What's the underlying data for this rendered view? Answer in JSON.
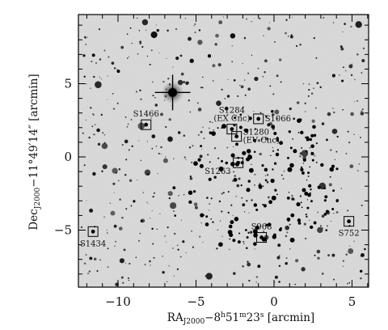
{
  "chart_data": {
    "type": "scatter",
    "xlabel": "RA_J2000 − 8h51m23s [arcmin]",
    "ylabel": "Dec_J2000 − 11°49′14″ [arcmin]",
    "xlim": [
      6,
      -12.5
    ],
    "ylim": [
      -9.5,
      9.5
    ],
    "x_ticks": [
      {
        "value": -10,
        "label": "−10"
      },
      {
        "value": -5,
        "label": "−5"
      },
      {
        "value": 0,
        "label": "0"
      },
      {
        "value": 5,
        "label": "5"
      }
    ],
    "y_ticks": [
      {
        "value": 5,
        "label": "5"
      },
      {
        "value": 0,
        "label": "0"
      },
      {
        "value": -5,
        "label": "−5"
      }
    ],
    "labeled_stars": [
      {
        "name": "S1466",
        "x": -8.2,
        "y": 2.2,
        "label_lines": [
          "S1466"
        ],
        "label_side": "up"
      },
      {
        "name": "S1284",
        "x": -2.7,
        "y": 1.9,
        "label_lines": [
          "S1284",
          "(EX Cnc)"
        ],
        "label_side": "up"
      },
      {
        "name": "S1066",
        "x": -1.0,
        "y": 2.6,
        "label_lines": [
          "S1066"
        ],
        "label_side": "right"
      },
      {
        "name": "S1280",
        "x": -2.4,
        "y": 1.4,
        "label_lines": [
          "S1280",
          "(EV Cnc)"
        ],
        "label_side": "right"
      },
      {
        "name": "S1263",
        "x": -2.3,
        "y": -0.4,
        "label_lines": [
          "S1263"
        ],
        "label_side": "left"
      },
      {
        "name": "S1434",
        "x": -11.6,
        "y": -5.1,
        "label_lines": [
          "S1434"
        ],
        "label_side": "down"
      },
      {
        "name": "S968",
        "x": -0.8,
        "y": -5.5,
        "label_lines": [
          "S968"
        ],
        "label_side": "up"
      },
      {
        "name": "S752",
        "x": 4.8,
        "y": -4.4,
        "label_lines": [
          "S752"
        ],
        "label_side": "down"
      }
    ],
    "bright_star": {
      "x": -6.5,
      "y": 4.4
    }
  }
}
